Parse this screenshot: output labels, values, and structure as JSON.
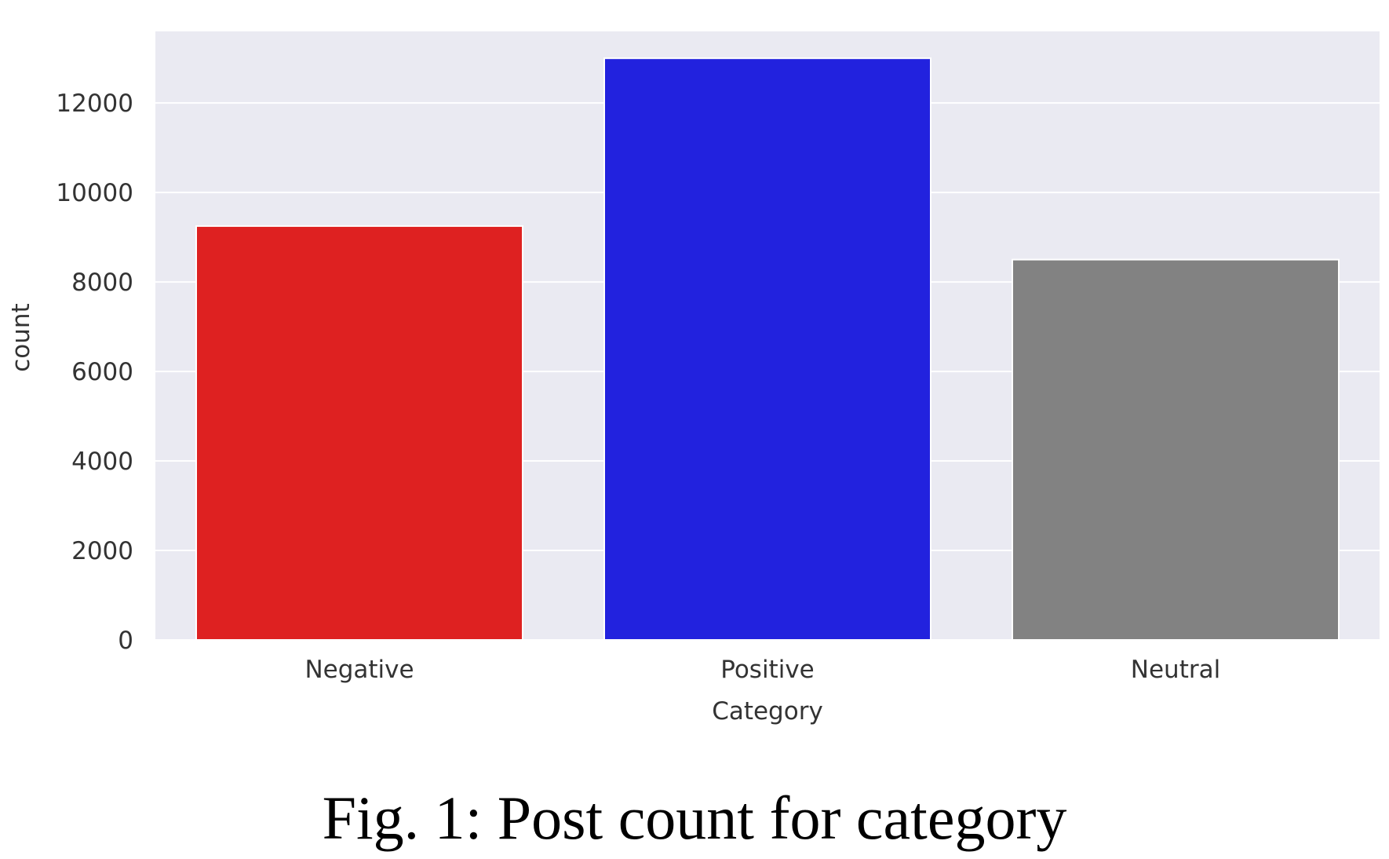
{
  "chart_data": {
    "type": "bar",
    "categories": [
      "Negative",
      "Positive",
      "Neutral"
    ],
    "values": [
      9250,
      13000,
      8500
    ],
    "colors": [
      "#de2121",
      "#2222de",
      "#828282"
    ],
    "xlabel": "Category",
    "ylabel": "count",
    "ylim": [
      0,
      13600
    ],
    "yticks": [
      0,
      2000,
      4000,
      6000,
      8000,
      10000,
      12000
    ],
    "grid": true,
    "background": "#eaeaf2",
    "grid_color": "#ffffff"
  },
  "caption": "Fig. 1: Post count for category"
}
